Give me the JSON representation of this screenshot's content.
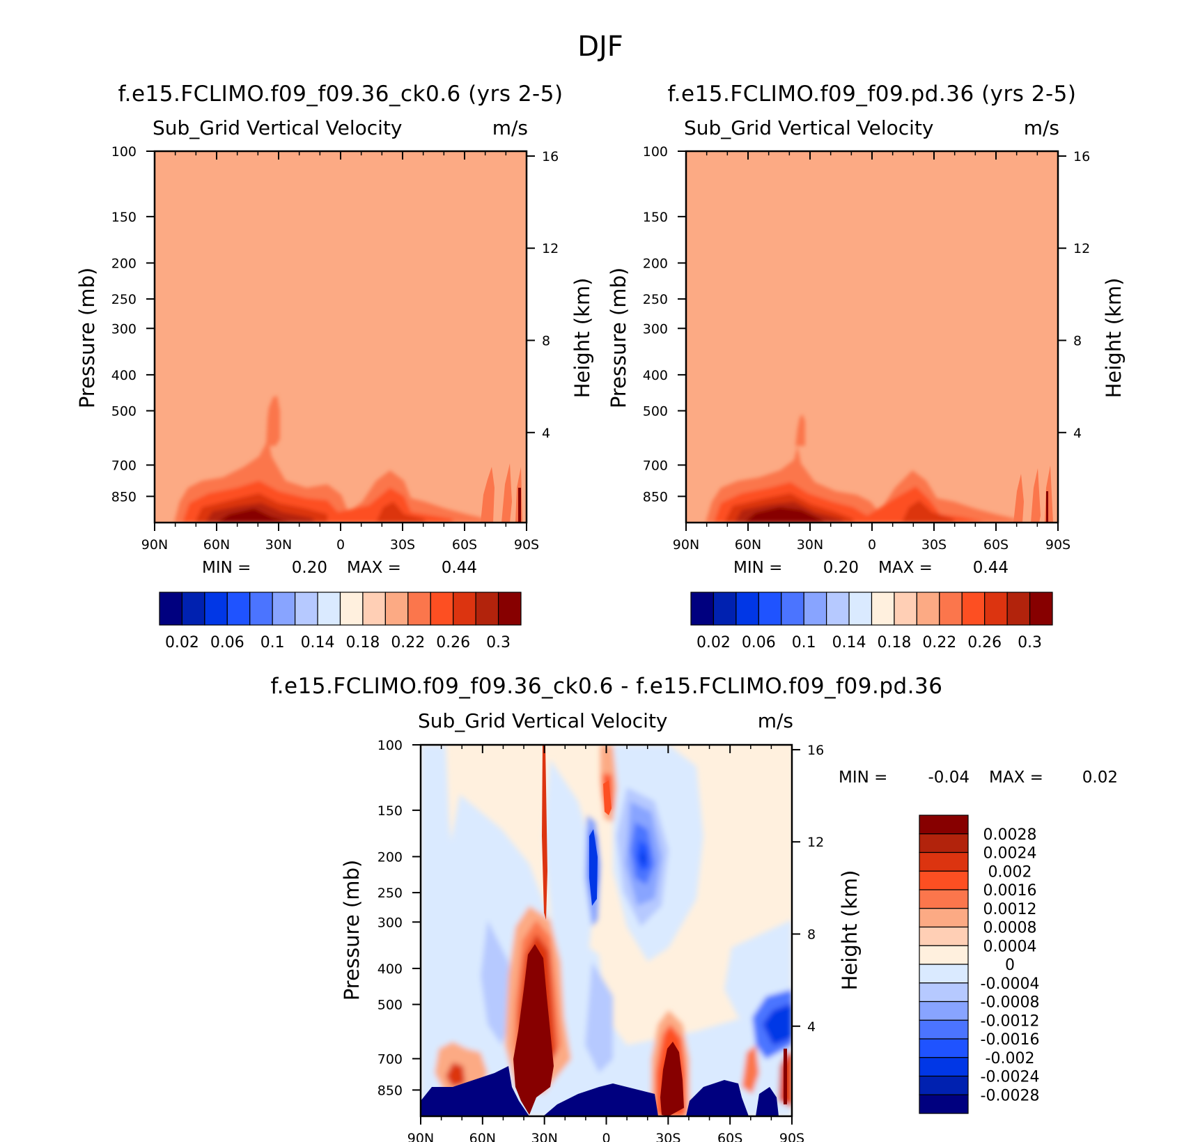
{
  "figure": {
    "title": "DJF"
  },
  "colors": {
    "abs_bar": [
      "#00007f",
      "#0021b0",
      "#0137e6",
      "#1f53ff",
      "#4b74ff",
      "#88a4ff",
      "#b6c9ff",
      "#daeaff",
      "#fff0de",
      "#ffcfb5",
      "#fcaa84",
      "#fb764c",
      "#fd4f22",
      "#dc3410",
      "#b2230c",
      "#870000"
    ],
    "diff_bar": [
      "#00007f",
      "#0021b0",
      "#0137e6",
      "#1f53ff",
      "#4b74ff",
      "#88a4ff",
      "#b6c9ff",
      "#daeaff",
      "#fff0de",
      "#ffcfb5",
      "#fcaa84",
      "#fb764c",
      "#fd4f22",
      "#dc3410",
      "#b2230c",
      "#870000"
    ]
  },
  "chart_data": [
    {
      "type": "heatmap",
      "title": "f.e15.FCLIMO.f09_f09.36_ck0.6 (yrs 2-5)",
      "subtitle": "Sub_Grid Vertical Velocity",
      "units": "m/s",
      "xlabel": "",
      "ylabel": "Pressure (mb)",
      "ylabel_right": "Height (km)",
      "x_ticks": [
        "90N",
        "60N",
        "30N",
        "0",
        "30S",
        "60S",
        "90S"
      ],
      "y_ticks": [
        "100",
        "150",
        "200",
        "250",
        "300",
        "400",
        "500",
        "700",
        "850"
      ],
      "y_ticks_right": [
        "16",
        "12",
        "8",
        "4"
      ],
      "stats": {
        "min_label": "MIN =",
        "min": "0.20",
        "max_label": "MAX =",
        "max": "0.44"
      },
      "colorbar_labels": [
        "0.02",
        "0.06",
        "0.1",
        "0.14",
        "0.18",
        "0.22",
        "0.26",
        "0.3"
      ],
      "background_level": 0.2
    },
    {
      "type": "heatmap",
      "title": "f.e15.FCLIMO.f09_f09.pd.36 (yrs 2-5)",
      "subtitle": "Sub_Grid Vertical Velocity",
      "units": "m/s",
      "xlabel": "",
      "ylabel": "Pressure (mb)",
      "ylabel_right": "Height (km)",
      "x_ticks": [
        "90N",
        "60N",
        "30N",
        "0",
        "30S",
        "60S",
        "90S"
      ],
      "y_ticks": [
        "100",
        "150",
        "200",
        "250",
        "300",
        "400",
        "500",
        "700",
        "850"
      ],
      "y_ticks_right": [
        "16",
        "12",
        "8",
        "4"
      ],
      "stats": {
        "min_label": "MIN =",
        "min": "0.20",
        "max_label": "MAX =",
        "max": "0.44"
      },
      "colorbar_labels": [
        "0.02",
        "0.06",
        "0.1",
        "0.14",
        "0.18",
        "0.22",
        "0.26",
        "0.3"
      ],
      "background_level": 0.2
    },
    {
      "type": "heatmap",
      "title": "f.e15.FCLIMO.f09_f09.36_ck0.6 - f.e15.FCLIMO.f09_f09.pd.36",
      "subtitle": "Sub_Grid Vertical Velocity",
      "units": "m/s",
      "xlabel": "",
      "ylabel": "Pressure (mb)",
      "ylabel_right": "Height (km)",
      "x_ticks": [
        "90N",
        "60N",
        "30N",
        "0",
        "30S",
        "60S",
        "90S"
      ],
      "y_ticks": [
        "100",
        "150",
        "200",
        "250",
        "300",
        "400",
        "500",
        "700",
        "850"
      ],
      "y_ticks_right": [
        "16",
        "12",
        "8",
        "4"
      ],
      "stats": {
        "min_label": "MIN =",
        "min": "-0.04",
        "max_label": "MAX =",
        "max": "0.02"
      },
      "colorbar_labels": [
        "0.0028",
        "0.0024",
        "0.002",
        "0.0016",
        "0.0012",
        "0.0008",
        "0.0004",
        "0",
        "-0.0004",
        "-0.0008",
        "-0.0012",
        "-0.0016",
        "-0.002",
        "-0.0024",
        "-0.0028"
      ]
    }
  ]
}
